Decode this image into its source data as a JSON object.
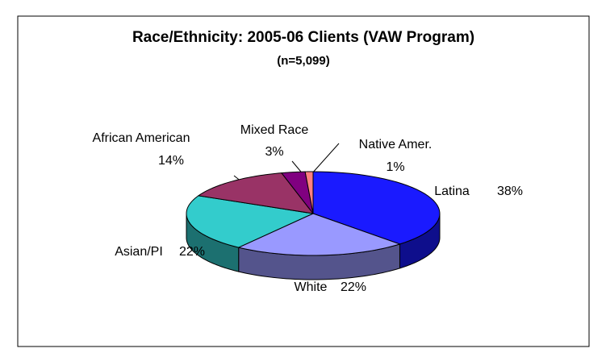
{
  "chart_data": {
    "type": "pie",
    "title": "Race/Ethnicity: 2005-06 Clients (VAW Program)",
    "subtitle": "(n=5,099)",
    "categories": [
      "Latina",
      "White",
      "Asian/PI",
      "African American",
      "Mixed Race",
      "Native Amer."
    ],
    "values": [
      38,
      22,
      22,
      14,
      3,
      1
    ],
    "value_labels": [
      "38%",
      "22%",
      "22%",
      "14%",
      "3%",
      "1%"
    ],
    "colors": [
      "#1a1aff",
      "#9999ff",
      "#33cccc",
      "#993366",
      "#800080",
      "#ff8080"
    ]
  }
}
